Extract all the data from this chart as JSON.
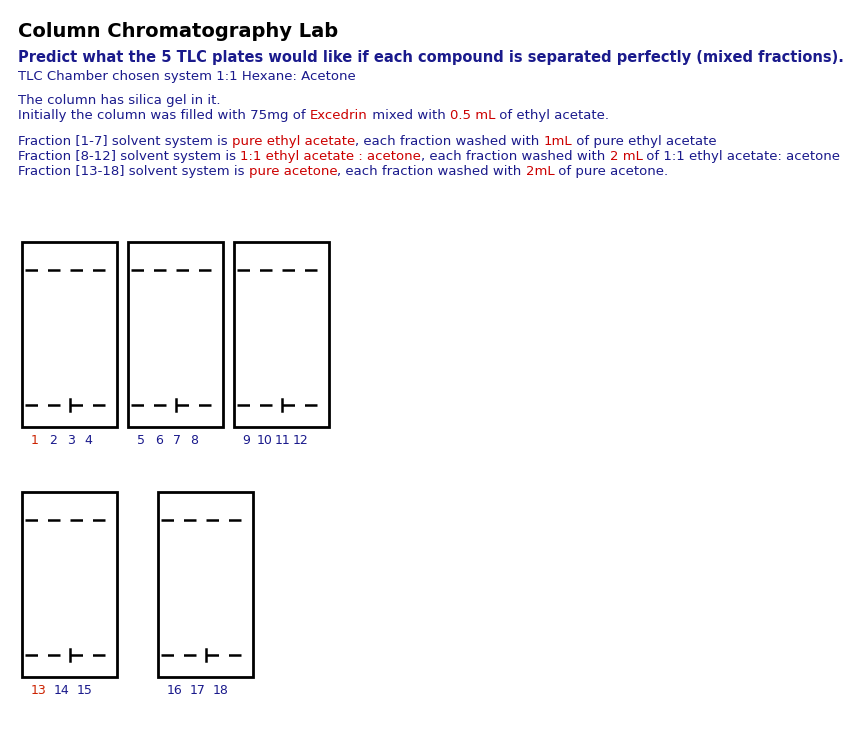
{
  "title": "Column Chromatography Lab",
  "bold_question": "Predict what the 5 TLC plates would like if each compound is separated perfectly (mixed fractions).",
  "subtitle": "TLC Chamber chosen system 1:1 Hexane: Acetone",
  "line1": "The column has silica gel in it.",
  "line2_parts": [
    [
      "Initially the column was filled with 75mg of ",
      "#1a1a8c",
      false
    ],
    [
      "Excedrin",
      "#cc0000",
      false
    ],
    [
      " mixed with ",
      "#1a1a8c",
      false
    ],
    [
      "0.5 mL",
      "#cc0000",
      false
    ],
    [
      " of ethyl acetate.",
      "#1a1a8c",
      false
    ]
  ],
  "fraction1_parts": [
    [
      "Fraction [1-7] solvent system is ",
      "#1a1a8c",
      false
    ],
    [
      "pure ethyl acetate",
      "#cc0000",
      false
    ],
    [
      ", each fraction washed with ",
      "#1a1a8c",
      false
    ],
    [
      "1mL",
      "#cc0000",
      false
    ],
    [
      " of pure ethyl acetate",
      "#1a1a8c",
      false
    ]
  ],
  "fraction2_parts": [
    [
      "Fraction [8-12] solvent system is ",
      "#1a1a8c",
      false
    ],
    [
      "1:1 ethyl acetate : acetone",
      "#cc0000",
      false
    ],
    [
      ", each fraction washed with ",
      "#1a1a8c",
      false
    ],
    [
      "2 mL",
      "#cc0000",
      false
    ],
    [
      " of 1:1 ethyl acetate: acetone",
      "#1a1a8c",
      false
    ]
  ],
  "fraction3_parts": [
    [
      "Fraction [13-18] solvent system is ",
      "#1a1a8c",
      false
    ],
    [
      "pure acetone",
      "#cc0000",
      false
    ],
    [
      ", each fraction washed with ",
      "#1a1a8c",
      false
    ],
    [
      "2mL",
      "#cc0000",
      false
    ],
    [
      " of pure acetone.",
      "#1a1a8c",
      false
    ]
  ],
  "text_color": "#1a1a8c",
  "title_color": "#000000",
  "plates": [
    {
      "label": [
        "1",
        "2",
        "3",
        "4"
      ],
      "label_colors": [
        "#cc2200",
        "#1a1a8c",
        "#1a1a8c",
        "#1a1a8c"
      ]
    },
    {
      "label": [
        "5",
        "6",
        "7",
        "8"
      ],
      "label_colors": [
        "#1a1a8c",
        "#1a1a8c",
        "#1a1a8c",
        "#1a1a8c"
      ]
    },
    {
      "label": [
        "9",
        "10",
        "11",
        "12"
      ],
      "label_colors": [
        "#1a1a8c",
        "#1a1a8c",
        "#1a1a8c",
        "#1a1a8c"
      ]
    },
    {
      "label": [
        "13",
        "14",
        "15"
      ],
      "label_colors": [
        "#cc2200",
        "#1a1a8c",
        "#1a1a8c"
      ]
    },
    {
      "label": [
        "16",
        "17",
        "18"
      ],
      "label_colors": [
        "#1a1a8c",
        "#1a1a8c",
        "#1a1a8c"
      ]
    }
  ],
  "background": "#ffffff"
}
